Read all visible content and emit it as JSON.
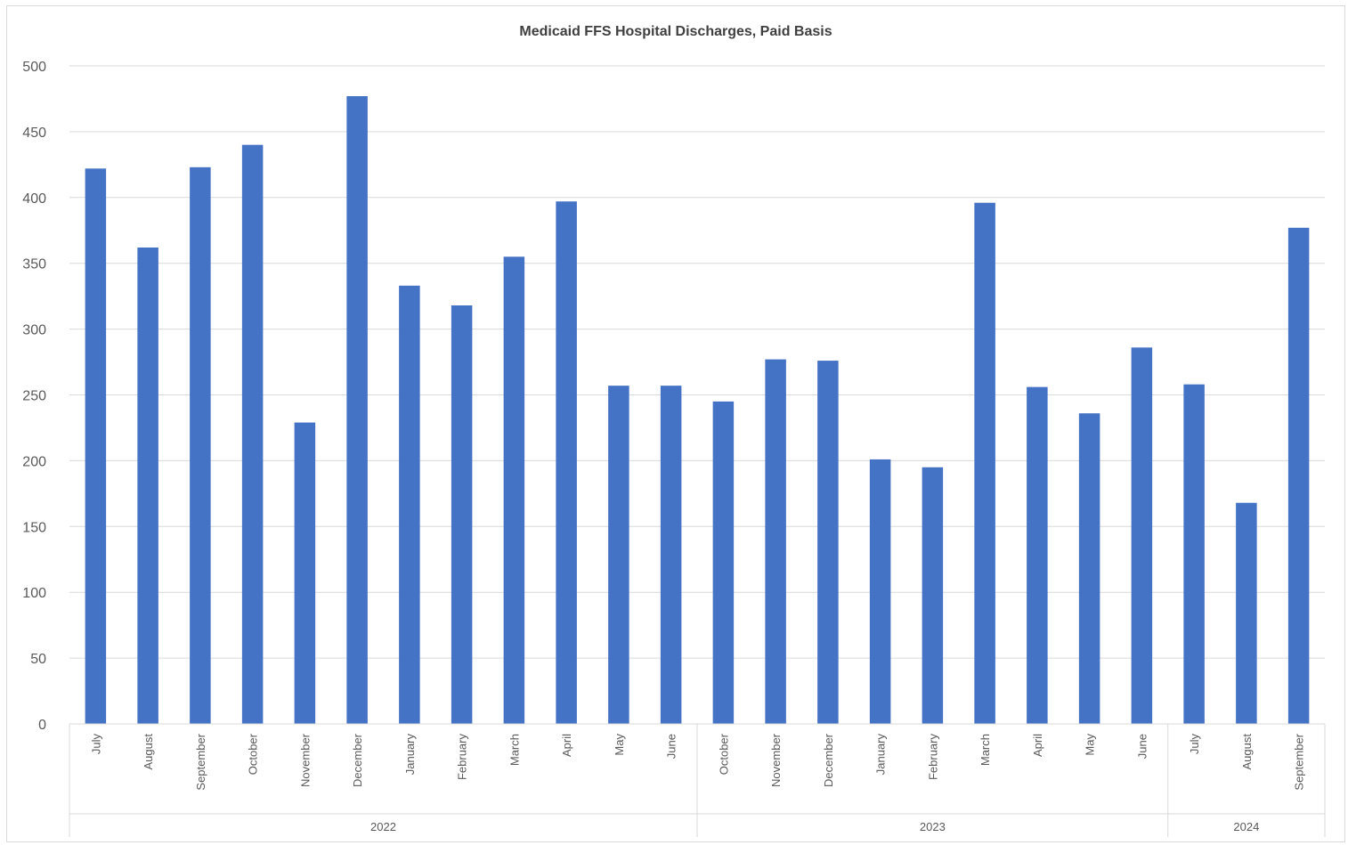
{
  "chart_data": {
    "type": "bar",
    "title": "Medicaid FFS Hospital Discharges, Paid Basis",
    "xlabel": "",
    "ylabel": "",
    "ylim": [
      0,
      500
    ],
    "yticks": [
      0,
      50,
      100,
      150,
      200,
      250,
      300,
      350,
      400,
      450,
      500
    ],
    "grid": true,
    "legend": "none",
    "bar_color": "#4472C4",
    "groups": [
      {
        "label": "2022",
        "count": 12
      },
      {
        "label": "2023",
        "count": 9
      },
      {
        "label": "2024",
        "count": 3
      }
    ],
    "categories": [
      "July",
      "August",
      "September",
      "October",
      "November",
      "December",
      "January",
      "February",
      "March",
      "April",
      "May",
      "June",
      "October",
      "November",
      "December",
      "January",
      "February",
      "March",
      "April",
      "May",
      "June",
      "July",
      "August",
      "September"
    ],
    "values": [
      422,
      362,
      423,
      440,
      229,
      477,
      333,
      318,
      355,
      397,
      257,
      257,
      245,
      277,
      276,
      201,
      195,
      396,
      256,
      236,
      286,
      258,
      168,
      377
    ]
  }
}
